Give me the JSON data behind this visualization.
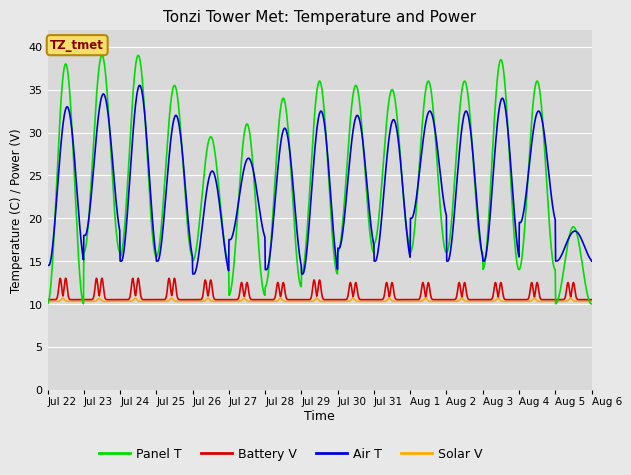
{
  "title": "Tonzi Tower Met: Temperature and Power",
  "xlabel": "Time",
  "ylabel": "Temperature (C) / Power (V)",
  "ylim": [
    0,
    42
  ],
  "yticks": [
    0,
    5,
    10,
    15,
    20,
    25,
    30,
    35,
    40
  ],
  "fig_bg": "#e8e8e8",
  "plot_bg": "#d9d9d9",
  "grid_color": "#ffffff",
  "legend_label": "TZ_tmet",
  "series": {
    "Panel T": {
      "color": "#00dd00",
      "lw": 1.2
    },
    "Battery V": {
      "color": "#dd0000",
      "lw": 1.2
    },
    "Air T": {
      "color": "#0000dd",
      "lw": 1.2
    },
    "Solar V": {
      "color": "#ffaa00",
      "lw": 1.2
    }
  },
  "x_tick_labels": [
    "Jul 22",
    "Jul 23",
    "Jul 24",
    "Jul 25",
    "Jul 26",
    "Jul 27",
    "Jul 28",
    "Jul 29",
    "Jul 30",
    "Jul 31",
    "Aug 1",
    "Aug 2",
    "Aug 3",
    "Aug 4",
    "Aug 5",
    "Aug 6"
  ],
  "num_days": 15,
  "ppd": 96,
  "panel_peaks": [
    38,
    39,
    39,
    35.5,
    29.5,
    31,
    34,
    36,
    35.5,
    35,
    36,
    36,
    38.5,
    36,
    19
  ],
  "panel_mins": [
    10,
    16,
    15.5,
    15.5,
    15,
    11,
    12,
    13.5,
    16,
    17,
    16,
    16,
    14,
    14,
    10
  ],
  "air_peaks": [
    33,
    34.5,
    35.5,
    32,
    25.5,
    27,
    30.5,
    32.5,
    32,
    31.5,
    32.5,
    32.5,
    34,
    32.5,
    18.5
  ],
  "air_mins": [
    14.5,
    18,
    15,
    15,
    13.5,
    17.5,
    14,
    13.5,
    16.5,
    15,
    20,
    15,
    15,
    19.5,
    15
  ],
  "batt_base": 10.5,
  "batt_peaks": [
    13.0,
    13.0,
    13.0,
    13.0,
    12.8,
    12.5,
    12.5,
    12.8,
    12.5,
    12.5,
    12.5,
    12.5,
    12.5,
    12.5,
    12.5
  ],
  "solar_base": 10.3,
  "solar_peaks": [
    10.8,
    10.8,
    10.8,
    10.8,
    10.8,
    10.8,
    10.8,
    10.8,
    10.8,
    10.8,
    10.8,
    10.8,
    10.8,
    10.8,
    10.8
  ]
}
